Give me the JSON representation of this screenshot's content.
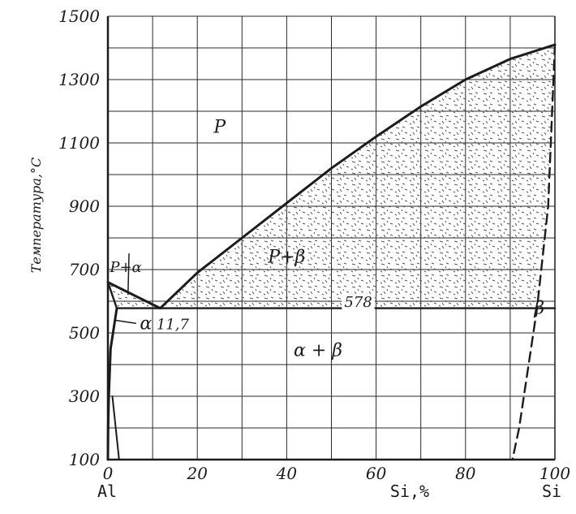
{
  "chart_data": {
    "type": "line",
    "title": "",
    "xlabel": "Si,%",
    "ylabel": "Температура,°С",
    "xlim": [
      0,
      100
    ],
    "ylim": [
      100,
      1500
    ],
    "grid": true,
    "x_ticks": [
      0,
      10,
      20,
      30,
      40,
      50,
      60,
      70,
      80,
      90,
      100
    ],
    "x_tick_labels": [
      "0",
      "20",
      "40",
      "60",
      "80",
      "100"
    ],
    "x_tick_label_values": [
      0,
      20,
      40,
      60,
      80,
      100
    ],
    "y_ticks": [
      100,
      200,
      300,
      400,
      500,
      600,
      700,
      800,
      900,
      1000,
      1100,
      1200,
      1300,
      1400,
      1500
    ],
    "y_tick_labels": [
      "100",
      "300",
      "500",
      "700",
      "900",
      "1100",
      "1300",
      "1500"
    ],
    "y_tick_label_values": [
      100,
      300,
      500,
      700,
      900,
      1100,
      1300,
      1500
    ],
    "x_end_labels": {
      "left": "Al",
      "right": "Si"
    },
    "series": [
      {
        "values": [
          [
            0,
            660
          ],
          [
            11.7,
            578
          ],
          [
            20,
            690
          ],
          [
            30,
            800
          ],
          [
            40,
            910
          ],
          [
            50,
            1020
          ],
          [
            60,
            1120
          ],
          [
            70,
            1215
          ],
          [
            80,
            1300
          ],
          [
            90,
            1365
          ],
          [
            100,
            1410
          ]
        ]
      },
      {
        "values": [
          [
            0,
            660
          ],
          [
            2,
            578
          ]
        ]
      },
      {
        "values": [
          [
            2,
            578
          ],
          [
            0.6,
            450
          ],
          [
            0.2,
            300
          ],
          [
            0.05,
            200
          ],
          [
            0,
            100
          ]
        ]
      },
      {
        "values": [
          [
            2,
            578
          ],
          [
            100,
            578
          ]
        ]
      },
      {
        "values": [
          [
            100,
            1410
          ],
          [
            98.5,
            900
          ],
          [
            96,
            578
          ],
          [
            92,
            200
          ],
          [
            90.5,
            100
          ]
        ]
      },
      {
        "values": [
          [
            1,
            300
          ],
          [
            2.5,
            100
          ]
        ]
      }
    ],
    "regions": [
      {
        "label": "Р",
        "x": 25,
        "y": 1150
      },
      {
        "label": "Р+α",
        "x": 4,
        "y": 710
      },
      {
        "label": "Р+β",
        "x": 40,
        "y": 740
      },
      {
        "label": "α",
        "x": 8.5,
        "y": 530
      },
      {
        "label": "11,7",
        "x": 14.5,
        "y": 530
      },
      {
        "label": "578",
        "x": 56,
        "y": 600
      },
      {
        "label": "α + β",
        "x": 47,
        "y": 445
      },
      {
        "label": "β",
        "x": 96.5,
        "y": 578
      }
    ]
  }
}
